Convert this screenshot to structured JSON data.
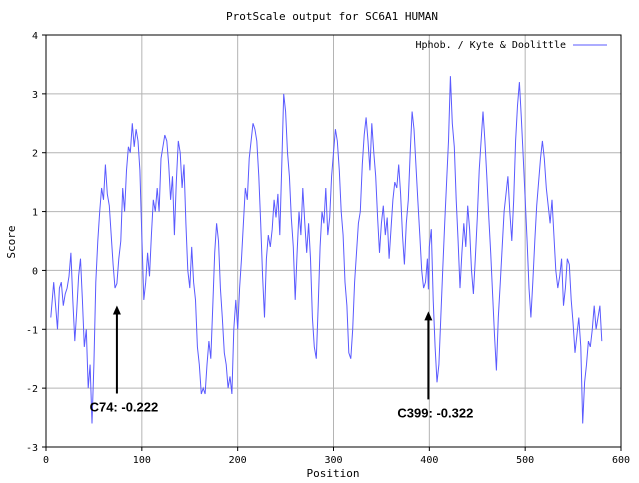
{
  "chart_data": {
    "type": "line",
    "title": "ProtScale output for SC6A1 HUMAN",
    "xlabel": "Position",
    "ylabel": "Score",
    "xlim": [
      0,
      600
    ],
    "ylim": [
      -3,
      4
    ],
    "x_ticks": [
      0,
      100,
      200,
      300,
      400,
      500,
      600
    ],
    "y_ticks": [
      -3,
      -2,
      -1,
      0,
      1,
      2,
      3,
      4
    ],
    "x_tick_labels": [
      "0",
      "100",
      "200",
      "300",
      "400",
      "500",
      "600"
    ],
    "y_tick_labels": [
      "-3",
      "-2",
      "-1",
      "0",
      "1",
      "2",
      "3",
      "4"
    ],
    "grid": true,
    "legend_position": "top-right",
    "series": [
      {
        "name": "Hphob. / Kyte & Doolittle",
        "color": "#5a5aff",
        "points": [
          [
            5,
            -0.8
          ],
          [
            8,
            -0.2
          ],
          [
            10,
            -0.6
          ],
          [
            12,
            -1.0
          ],
          [
            14,
            -0.3
          ],
          [
            16,
            -0.2
          ],
          [
            18,
            -0.6
          ],
          [
            20,
            -0.4
          ],
          [
            22,
            -0.3
          ],
          [
            24,
            -0.1
          ],
          [
            26,
            0.3
          ],
          [
            28,
            -0.5
          ],
          [
            30,
            -1.2
          ],
          [
            32,
            -0.7
          ],
          [
            34,
            -0.1
          ],
          [
            36,
            0.2
          ],
          [
            38,
            -0.5
          ],
          [
            40,
            -1.3
          ],
          [
            42,
            -1.0
          ],
          [
            44,
            -2.0
          ],
          [
            46,
            -1.6
          ],
          [
            48,
            -2.6
          ],
          [
            50,
            -1.6
          ],
          [
            52,
            -0.2
          ],
          [
            54,
            0.5
          ],
          [
            56,
            1.0
          ],
          [
            58,
            1.4
          ],
          [
            60,
            1.2
          ],
          [
            62,
            1.8
          ],
          [
            64,
            1.3
          ],
          [
            66,
            1.1
          ],
          [
            68,
            0.6
          ],
          [
            70,
            0.1
          ],
          [
            72,
            -0.3
          ],
          [
            74,
            -0.222
          ],
          [
            76,
            0.2
          ],
          [
            78,
            0.5
          ],
          [
            80,
            1.4
          ],
          [
            82,
            1.0
          ],
          [
            84,
            1.7
          ],
          [
            86,
            2.1
          ],
          [
            88,
            2.0
          ],
          [
            90,
            2.5
          ],
          [
            92,
            2.1
          ],
          [
            94,
            2.4
          ],
          [
            96,
            2.2
          ],
          [
            98,
            1.7
          ],
          [
            100,
            0.6
          ],
          [
            102,
            -0.5
          ],
          [
            104,
            -0.2
          ],
          [
            106,
            0.3
          ],
          [
            108,
            -0.1
          ],
          [
            110,
            0.6
          ],
          [
            112,
            1.2
          ],
          [
            114,
            1.0
          ],
          [
            116,
            1.4
          ],
          [
            118,
            1.0
          ],
          [
            120,
            1.9
          ],
          [
            122,
            2.1
          ],
          [
            124,
            2.3
          ],
          [
            126,
            2.2
          ],
          [
            128,
            1.8
          ],
          [
            130,
            1.2
          ],
          [
            132,
            1.6
          ],
          [
            134,
            0.6
          ],
          [
            136,
            1.5
          ],
          [
            138,
            2.2
          ],
          [
            140,
            2.0
          ],
          [
            142,
            1.4
          ],
          [
            144,
            1.8
          ],
          [
            146,
            0.8
          ],
          [
            148,
            0.0
          ],
          [
            150,
            -0.3
          ],
          [
            152,
            0.4
          ],
          [
            154,
            -0.2
          ],
          [
            156,
            -0.5
          ],
          [
            158,
            -1.3
          ],
          [
            160,
            -1.6
          ],
          [
            162,
            -2.1
          ],
          [
            164,
            -2.0
          ],
          [
            166,
            -2.1
          ],
          [
            168,
            -1.6
          ],
          [
            170,
            -1.2
          ],
          [
            172,
            -1.5
          ],
          [
            174,
            -0.6
          ],
          [
            176,
            0.3
          ],
          [
            178,
            0.8
          ],
          [
            180,
            0.5
          ],
          [
            182,
            -0.3
          ],
          [
            184,
            -0.8
          ],
          [
            186,
            -1.4
          ],
          [
            188,
            -1.6
          ],
          [
            190,
            -2.0
          ],
          [
            192,
            -1.8
          ],
          [
            194,
            -2.1
          ],
          [
            196,
            -1.0
          ],
          [
            198,
            -0.5
          ],
          [
            200,
            -1.0
          ],
          [
            202,
            -0.3
          ],
          [
            204,
            0.2
          ],
          [
            206,
            0.8
          ],
          [
            208,
            1.4
          ],
          [
            210,
            1.2
          ],
          [
            212,
            1.9
          ],
          [
            214,
            2.2
          ],
          [
            216,
            2.5
          ],
          [
            218,
            2.4
          ],
          [
            220,
            2.2
          ],
          [
            222,
            1.6
          ],
          [
            224,
            0.8
          ],
          [
            226,
            -0.1
          ],
          [
            228,
            -0.8
          ],
          [
            230,
            0.2
          ],
          [
            232,
            0.6
          ],
          [
            234,
            0.4
          ],
          [
            236,
            0.7
          ],
          [
            238,
            1.2
          ],
          [
            240,
            0.9
          ],
          [
            242,
            1.3
          ],
          [
            244,
            0.6
          ],
          [
            246,
            1.8
          ],
          [
            248,
            3.0
          ],
          [
            250,
            2.7
          ],
          [
            252,
            2.0
          ],
          [
            254,
            1.6
          ],
          [
            256,
            0.9
          ],
          [
            258,
            0.4
          ],
          [
            260,
            -0.5
          ],
          [
            262,
            0.3
          ],
          [
            264,
            1.0
          ],
          [
            266,
            0.6
          ],
          [
            268,
            1.4
          ],
          [
            270,
            0.8
          ],
          [
            272,
            0.3
          ],
          [
            274,
            0.8
          ],
          [
            276,
            0.2
          ],
          [
            278,
            -0.8
          ],
          [
            280,
            -1.3
          ],
          [
            282,
            -1.5
          ],
          [
            284,
            -0.6
          ],
          [
            286,
            0.4
          ],
          [
            288,
            1.0
          ],
          [
            290,
            0.8
          ],
          [
            292,
            1.4
          ],
          [
            294,
            0.6
          ],
          [
            296,
            0.9
          ],
          [
            298,
            1.6
          ],
          [
            300,
            2.0
          ],
          [
            302,
            2.4
          ],
          [
            304,
            2.2
          ],
          [
            306,
            1.7
          ],
          [
            308,
            1.0
          ],
          [
            310,
            0.6
          ],
          [
            312,
            -0.2
          ],
          [
            314,
            -0.6
          ],
          [
            316,
            -1.4
          ],
          [
            318,
            -1.5
          ],
          [
            320,
            -1.0
          ],
          [
            322,
            -0.2
          ],
          [
            324,
            0.3
          ],
          [
            326,
            0.8
          ],
          [
            328,
            1.0
          ],
          [
            330,
            1.8
          ],
          [
            332,
            2.3
          ],
          [
            334,
            2.6
          ],
          [
            336,
            2.2
          ],
          [
            338,
            1.7
          ],
          [
            340,
            2.5
          ],
          [
            342,
            2.0
          ],
          [
            344,
            1.6
          ],
          [
            346,
            0.9
          ],
          [
            348,
            0.3
          ],
          [
            350,
            0.8
          ],
          [
            352,
            1.1
          ],
          [
            354,
            0.6
          ],
          [
            356,
            0.9
          ],
          [
            358,
            0.2
          ],
          [
            360,
            0.7
          ],
          [
            362,
            1.2
          ],
          [
            364,
            1.5
          ],
          [
            366,
            1.4
          ],
          [
            368,
            1.8
          ],
          [
            370,
            1.3
          ],
          [
            372,
            0.6
          ],
          [
            374,
            0.1
          ],
          [
            376,
            0.8
          ],
          [
            378,
            1.2
          ],
          [
            380,
            2.0
          ],
          [
            382,
            2.7
          ],
          [
            384,
            2.4
          ],
          [
            386,
            1.8
          ],
          [
            388,
            1.2
          ],
          [
            390,
            0.6
          ],
          [
            392,
            0.0
          ],
          [
            394,
            -0.3
          ],
          [
            396,
            -0.2
          ],
          [
            398,
            0.2
          ],
          [
            399,
            -0.322
          ],
          [
            400,
            0.4
          ],
          [
            402,
            0.7
          ],
          [
            404,
            -0.5
          ],
          [
            406,
            -1.3
          ],
          [
            408,
            -1.9
          ],
          [
            410,
            -1.6
          ],
          [
            412,
            -0.8
          ],
          [
            414,
            0.0
          ],
          [
            416,
            0.8
          ],
          [
            418,
            1.5
          ],
          [
            420,
            2.2
          ],
          [
            422,
            3.3
          ],
          [
            424,
            2.5
          ],
          [
            426,
            2.1
          ],
          [
            428,
            1.2
          ],
          [
            430,
            0.5
          ],
          [
            432,
            -0.3
          ],
          [
            434,
            0.3
          ],
          [
            436,
            0.8
          ],
          [
            438,
            0.4
          ],
          [
            440,
            1.1
          ],
          [
            442,
            0.7
          ],
          [
            444,
            0.0
          ],
          [
            446,
            -0.4
          ],
          [
            448,
            0.2
          ],
          [
            450,
            0.9
          ],
          [
            452,
            1.7
          ],
          [
            454,
            2.2
          ],
          [
            456,
            2.7
          ],
          [
            458,
            2.2
          ],
          [
            460,
            1.6
          ],
          [
            462,
            0.9
          ],
          [
            464,
            0.3
          ],
          [
            466,
            -0.4
          ],
          [
            468,
            -1.1
          ],
          [
            470,
            -1.7
          ],
          [
            472,
            -0.8
          ],
          [
            474,
            -0.2
          ],
          [
            476,
            0.4
          ],
          [
            478,
            1.0
          ],
          [
            480,
            1.3
          ],
          [
            482,
            1.6
          ],
          [
            484,
            1.0
          ],
          [
            486,
            0.5
          ],
          [
            488,
            1.2
          ],
          [
            490,
            2.2
          ],
          [
            492,
            2.8
          ],
          [
            494,
            3.2
          ],
          [
            496,
            2.6
          ],
          [
            498,
            1.9
          ],
          [
            500,
            1.2
          ],
          [
            502,
            0.5
          ],
          [
            504,
            -0.3
          ],
          [
            506,
            -0.8
          ],
          [
            508,
            -0.2
          ],
          [
            510,
            0.5
          ],
          [
            512,
            1.1
          ],
          [
            514,
            1.5
          ],
          [
            516,
            1.9
          ],
          [
            518,
            2.2
          ],
          [
            520,
            1.9
          ],
          [
            522,
            1.4
          ],
          [
            524,
            1.1
          ],
          [
            526,
            0.8
          ],
          [
            528,
            1.2
          ],
          [
            530,
            0.6
          ],
          [
            532,
            0.0
          ],
          [
            534,
            -0.3
          ],
          [
            536,
            -0.1
          ],
          [
            538,
            0.2
          ],
          [
            540,
            -0.6
          ],
          [
            542,
            -0.3
          ],
          [
            544,
            0.2
          ],
          [
            546,
            0.1
          ],
          [
            548,
            -0.5
          ],
          [
            550,
            -0.9
          ],
          [
            552,
            -1.4
          ],
          [
            554,
            -1.1
          ],
          [
            556,
            -0.8
          ],
          [
            558,
            -1.3
          ],
          [
            560,
            -2.6
          ],
          [
            562,
            -1.9
          ],
          [
            564,
            -1.6
          ],
          [
            566,
            -1.2
          ],
          [
            568,
            -1.3
          ],
          [
            570,
            -1.0
          ],
          [
            572,
            -0.6
          ],
          [
            574,
            -1.0
          ],
          [
            576,
            -0.8
          ],
          [
            578,
            -0.6
          ],
          [
            580,
            -1.2
          ]
        ]
      }
    ],
    "annotations": [
      {
        "label": "C74: -0.222",
        "x": 74,
        "y": -0.222,
        "color": "#000000"
      },
      {
        "label": "C399: -0.322",
        "x": 399,
        "y": -0.322,
        "color": "#000000"
      }
    ]
  }
}
